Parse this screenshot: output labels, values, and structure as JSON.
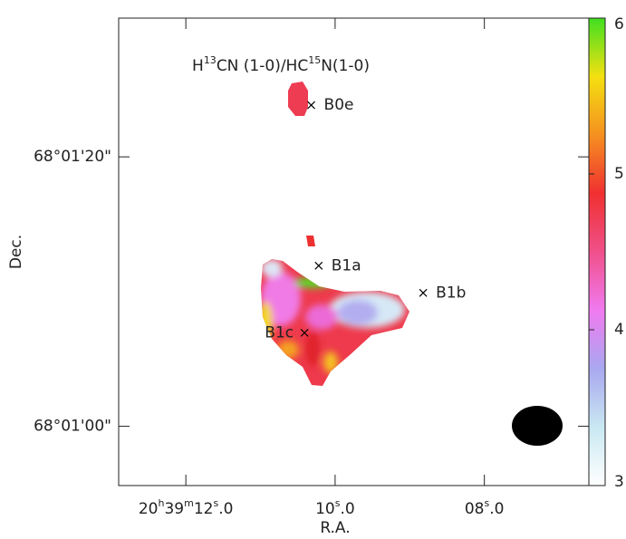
{
  "chart_data": {
    "type": "map",
    "title": "H13CN (1-0)/HC15N(1-0)",
    "x_label": "R.A.",
    "y_label": "Dec.",
    "xlim": [
      12.9,
      6.6
    ],
    "xticks": [
      {
        "value": 12,
        "label": "20h39m12s.0"
      },
      {
        "value": 10,
        "label": "10s.0"
      },
      {
        "value": 8,
        "label": "08s.0"
      }
    ],
    "ylim": [
      55.6,
      90.3
    ],
    "yticks": [
      {
        "value": 60,
        "label": "68°01'00\""
      },
      {
        "value": 80,
        "label": "68°01'20\""
      }
    ],
    "colorbar": {
      "lim": [
        3,
        6
      ],
      "ticks": [
        3,
        4,
        5,
        6
      ],
      "colormap": [
        "#ffffff",
        "#c9e8f2",
        "#a9a8f0",
        "#f07af0",
        "#f0508a",
        "#f03030",
        "#f59020",
        "#f4e010",
        "#40e020"
      ]
    },
    "sources": [
      {
        "name": "B0e",
        "x": 10.32,
        "y": 83.84
      },
      {
        "name": "B1a",
        "x": 10.22,
        "y": 71.92
      },
      {
        "name": "B1b",
        "x": 8.82,
        "y": 69.9
      },
      {
        "name": "B1c",
        "x": 10.41,
        "y": 66.94
      }
    ]
  }
}
